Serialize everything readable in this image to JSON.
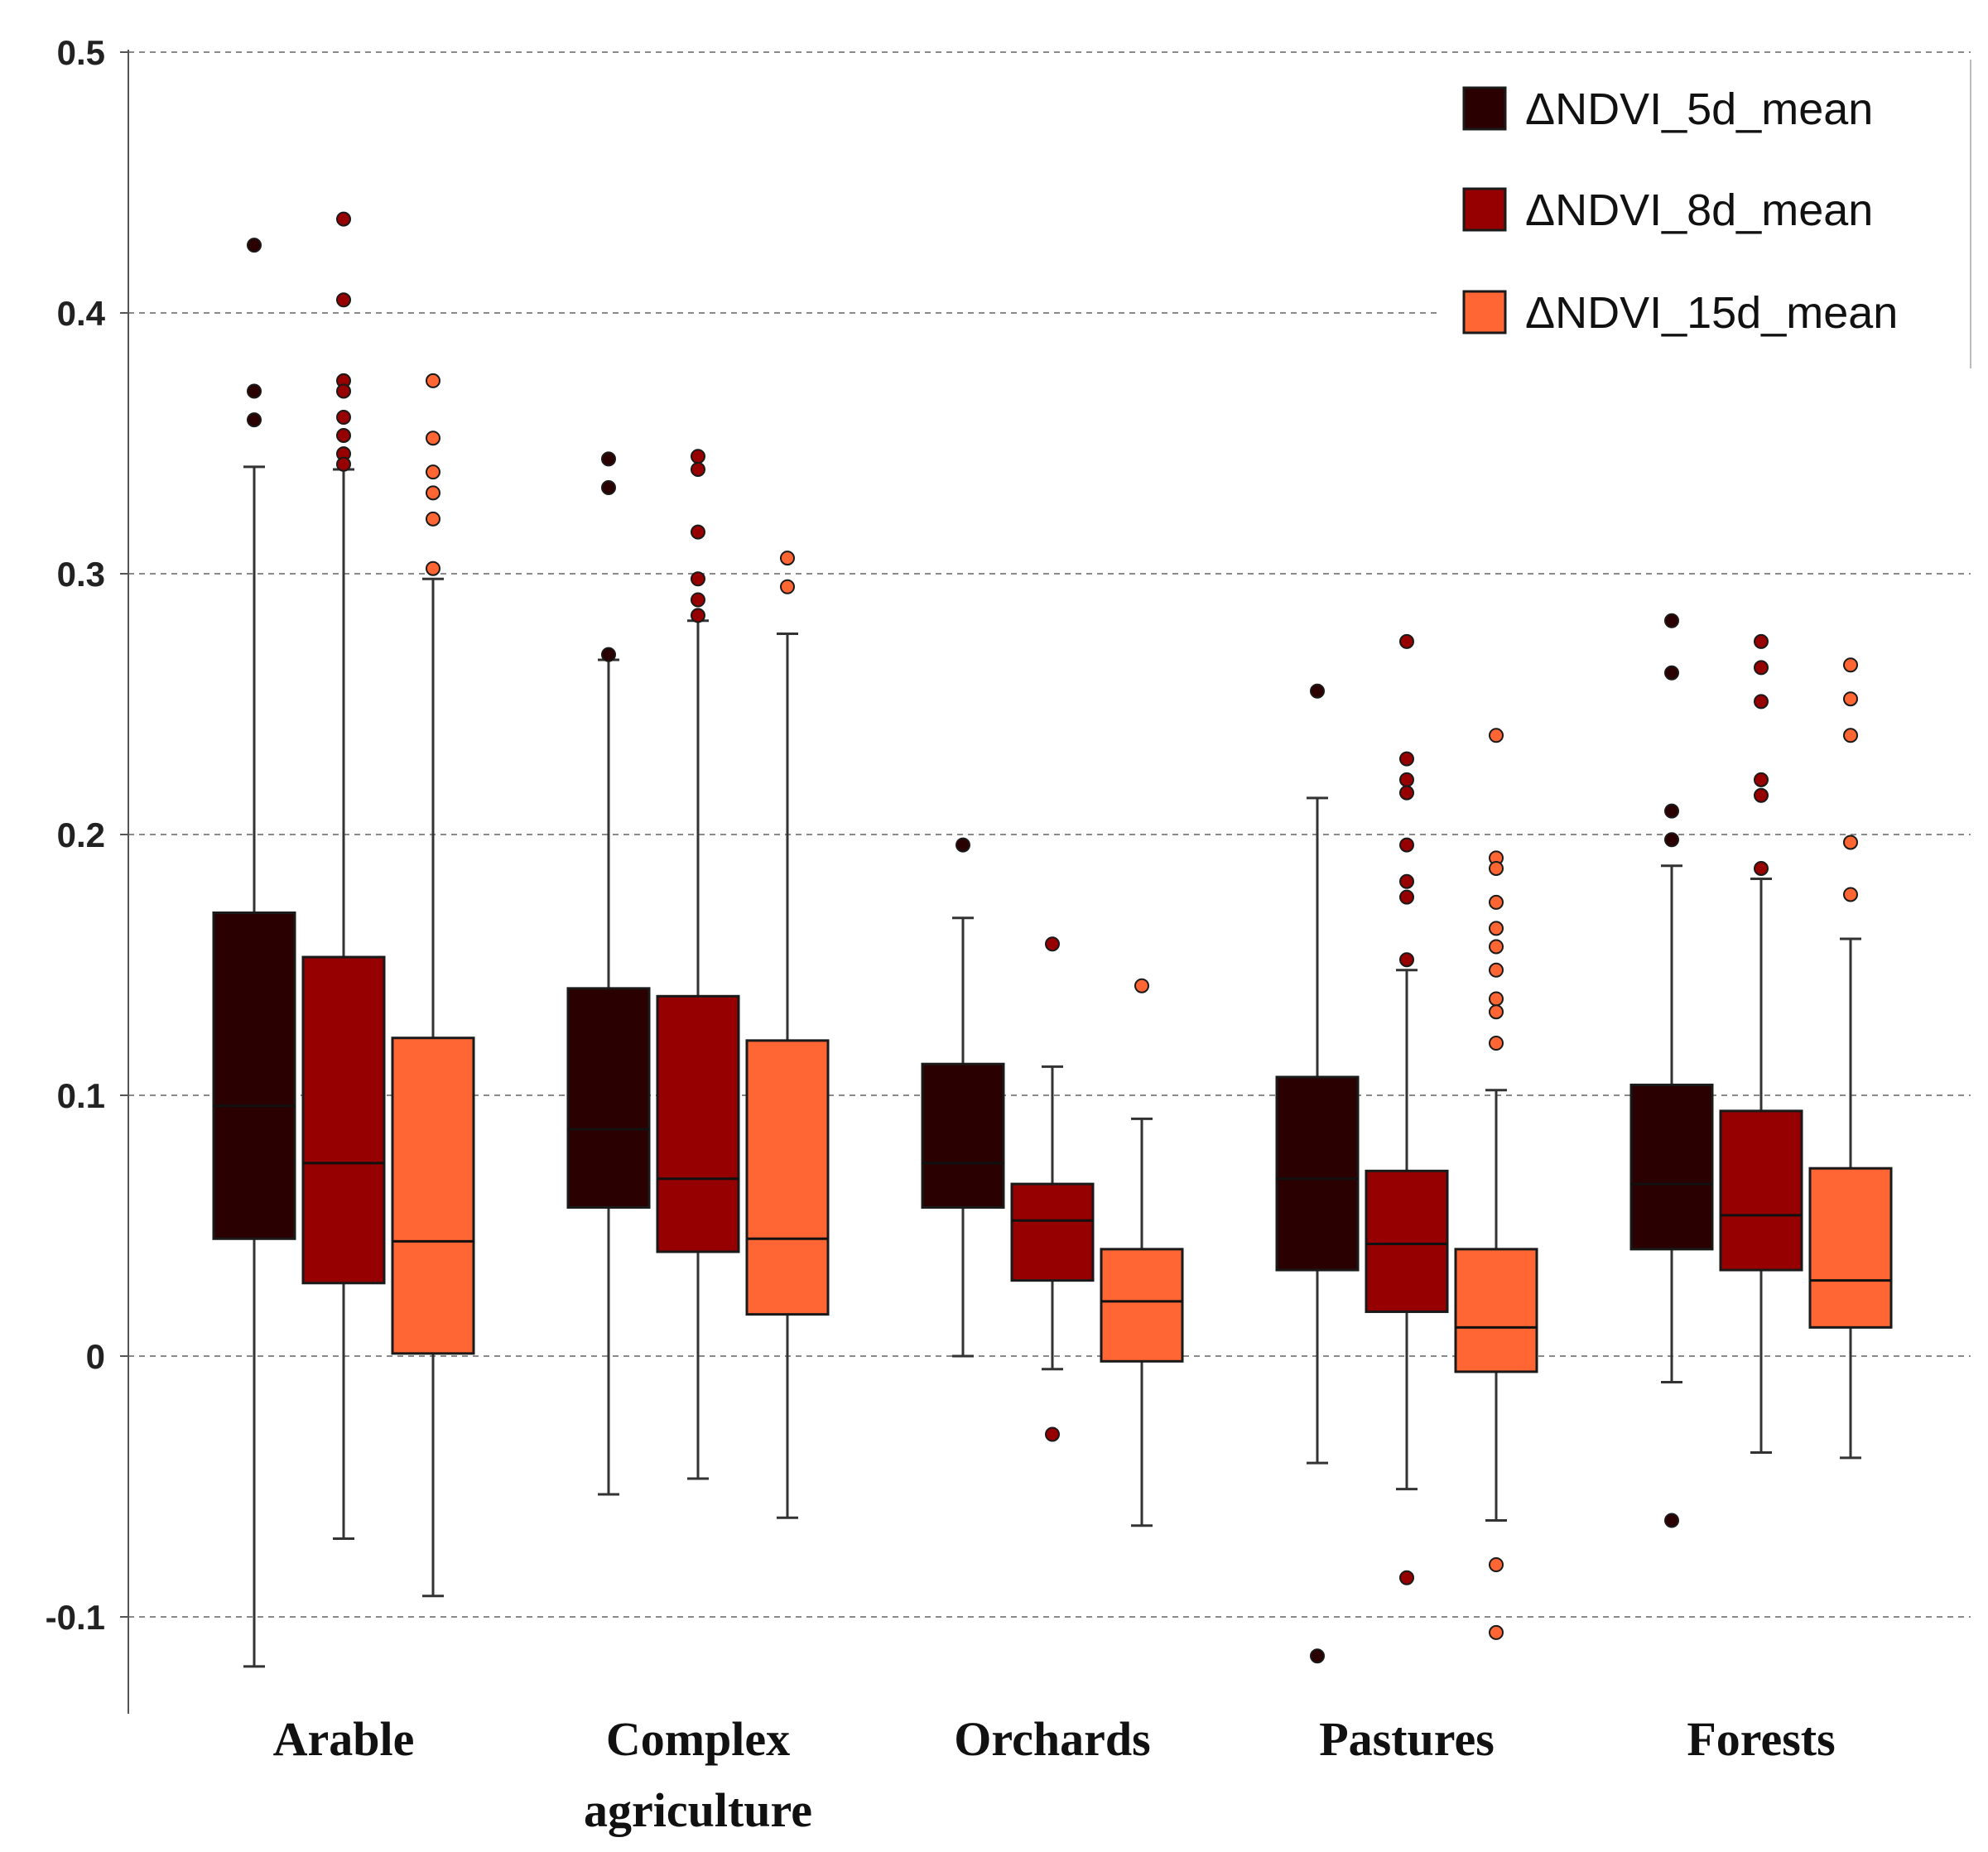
{
  "chart_data": {
    "type": "box",
    "title": "",
    "xlabel": "",
    "ylabel": "",
    "ylim": [
      -0.135,
      0.5
    ],
    "yticks": [
      -0.1,
      0,
      0.1,
      0.2,
      0.3,
      0.4,
      0.5
    ],
    "ytick_labels": [
      "-0.1",
      "0",
      "0.1",
      "0.2",
      "0.3",
      "0.4",
      "0.5"
    ],
    "grid": true,
    "legend_position": "top-right",
    "categories": [
      "Arable",
      "Complex agriculture",
      "Orchards",
      "Pastures",
      "Forests"
    ],
    "category_lines": [
      [
        "Arable"
      ],
      [
        "Complex",
        "agriculture"
      ],
      [
        "Orchards"
      ],
      [
        "Pastures"
      ],
      [
        "Forests"
      ]
    ],
    "series": [
      {
        "name": "ΔNDVI_5d_mean",
        "color": "#2a0000",
        "boxes": [
          {
            "whisker_low": -0.119,
            "q1": 0.045,
            "median": 0.096,
            "q3": 0.17,
            "whisker_high": 0.341,
            "outliers": [
              0.426,
              0.37,
              0.359
            ]
          },
          {
            "whisker_low": -0.053,
            "q1": 0.057,
            "median": 0.087,
            "q3": 0.141,
            "whisker_high": 0.267,
            "outliers": [
              0.344,
              0.333,
              0.269
            ]
          },
          {
            "whisker_low": 0.0,
            "q1": 0.057,
            "median": 0.074,
            "q3": 0.112,
            "whisker_high": 0.168,
            "outliers": [
              0.196
            ]
          },
          {
            "whisker_low": -0.041,
            "q1": 0.033,
            "median": 0.068,
            "q3": 0.107,
            "whisker_high": 0.214,
            "outliers": [
              0.255,
              -0.115
            ]
          },
          {
            "whisker_low": -0.01,
            "q1": 0.041,
            "median": 0.066,
            "q3": 0.104,
            "whisker_high": 0.188,
            "outliers": [
              0.282,
              0.262,
              0.209,
              0.198,
              -0.063
            ]
          }
        ]
      },
      {
        "name": "ΔNDVI_8d_mean",
        "color": "#960000",
        "boxes": [
          {
            "whisker_low": -0.07,
            "q1": 0.028,
            "median": 0.074,
            "q3": 0.153,
            "whisker_high": 0.34,
            "outliers": [
              0.436,
              0.405,
              0.374,
              0.37,
              0.36,
              0.353,
              0.346,
              0.342
            ]
          },
          {
            "whisker_low": -0.047,
            "q1": 0.04,
            "median": 0.068,
            "q3": 0.138,
            "whisker_high": 0.282,
            "outliers": [
              0.345,
              0.34,
              0.316,
              0.298,
              0.29,
              0.284
            ]
          },
          {
            "whisker_low": -0.005,
            "q1": 0.029,
            "median": 0.052,
            "q3": 0.066,
            "whisker_high": 0.111,
            "outliers": [
              0.158,
              -0.03
            ]
          },
          {
            "whisker_low": -0.051,
            "q1": 0.017,
            "median": 0.043,
            "q3": 0.071,
            "whisker_high": 0.148,
            "outliers": [
              0.274,
              0.229,
              0.221,
              0.216,
              0.196,
              0.182,
              0.176,
              0.152,
              -0.085
            ]
          },
          {
            "whisker_low": -0.037,
            "q1": 0.033,
            "median": 0.054,
            "q3": 0.094,
            "whisker_high": 0.183,
            "outliers": [
              0.274,
              0.264,
              0.251,
              0.221,
              0.215,
              0.187
            ]
          }
        ]
      },
      {
        "name": "ΔNDVI_15d_mean",
        "color": "#ff6633",
        "boxes": [
          {
            "whisker_low": -0.092,
            "q1": 0.001,
            "median": 0.044,
            "q3": 0.122,
            "whisker_high": 0.298,
            "outliers": [
              0.374,
              0.352,
              0.339,
              0.331,
              0.321,
              0.302
            ]
          },
          {
            "whisker_low": -0.062,
            "q1": 0.016,
            "median": 0.045,
            "q3": 0.121,
            "whisker_high": 0.277,
            "outliers": [
              0.306,
              0.295
            ]
          },
          {
            "whisker_low": -0.065,
            "q1": -0.002,
            "median": 0.021,
            "q3": 0.041,
            "whisker_high": 0.091,
            "outliers": [
              0.142
            ]
          },
          {
            "whisker_low": -0.063,
            "q1": -0.006,
            "median": 0.011,
            "q3": 0.041,
            "whisker_high": 0.102,
            "outliers": [
              0.238,
              0.191,
              0.187,
              0.174,
              0.164,
              0.157,
              0.148,
              0.137,
              0.132,
              0.12,
              -0.08,
              -0.106
            ]
          },
          {
            "whisker_low": -0.039,
            "q1": 0.011,
            "median": 0.029,
            "q3": 0.072,
            "whisker_high": 0.16,
            "outliers": [
              0.265,
              0.252,
              0.238,
              0.197,
              0.177
            ]
          }
        ]
      }
    ]
  }
}
